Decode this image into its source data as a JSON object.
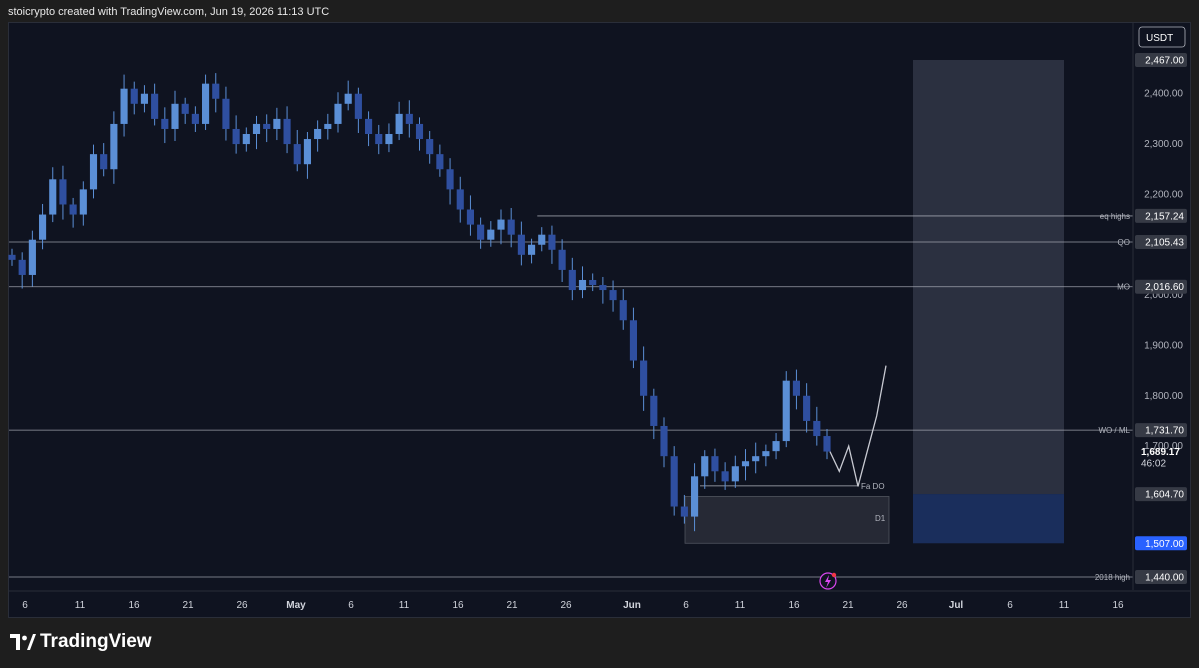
{
  "header": {
    "attribution": "stoicrypto created with TradingView.com, Jun 19, 2026 11:13 UTC"
  },
  "footer": {
    "brand": "TradingView"
  },
  "chart_data": {
    "type": "candlestick",
    "currency": "USDT",
    "ylim": [
      1420,
      2520
    ],
    "x_ticks": [
      "6",
      "11",
      "16",
      "21",
      "26",
      "May",
      "6",
      "11",
      "16",
      "21",
      "26",
      "Jun",
      "6",
      "11",
      "16",
      "21",
      "26",
      "Jul",
      "6",
      "11",
      "16"
    ],
    "y_ticks": [
      "2,400.00",
      "2,300.00",
      "2,200.00",
      "2,000.00",
      "1,900.00",
      "1,800.00",
      "1,700.00"
    ],
    "price_labels": [
      {
        "text": "2,467.00",
        "value": 2467,
        "style": "grey"
      },
      {
        "text": "2,157.24",
        "value": 2157.24,
        "style": "grey"
      },
      {
        "text": "2,105.43",
        "value": 2105.43,
        "style": "grey"
      },
      {
        "text": "2,016.60",
        "value": 2016.6,
        "style": "grey"
      },
      {
        "text": "1,731.70",
        "value": 1731.7,
        "style": "grey"
      },
      {
        "text": "1,604.70",
        "value": 1604.7,
        "style": "grey"
      },
      {
        "text": "1,507.00",
        "value": 1507,
        "style": "blue"
      },
      {
        "text": "1,440.00",
        "value": 1440,
        "style": "grey"
      }
    ],
    "current_price": {
      "text": "1,689.17",
      "countdown": "46:02",
      "value": 1689.17
    },
    "levels": [
      {
        "label": "eq highs",
        "value": 2157.24,
        "from": 0.47
      },
      {
        "label": "QO",
        "value": 2105.43,
        "from": 0
      },
      {
        "label": "MO",
        "value": 2016.6,
        "from": 0
      },
      {
        "label": "WO / ML",
        "value": 1731.7,
        "from": 0
      },
      {
        "label": "2018 high",
        "value": 1440,
        "from": 0
      }
    ],
    "annotations": [
      {
        "label": "Fa DO",
        "value": 1621
      },
      {
        "label": "D1",
        "value": 1557
      }
    ],
    "zones": [
      {
        "name": "D1",
        "top": 1600,
        "bottom": 1507
      },
      {
        "name": "target",
        "top": 2467,
        "bottom": 1604.7
      },
      {
        "name": "stop",
        "top": 1604.7,
        "bottom": 1507
      }
    ],
    "series": [
      {
        "name": "candles",
        "values": [
          2070,
          2040,
          2110,
          2160,
          2230,
          2180,
          2160,
          2210,
          2280,
          2250,
          2340,
          2410,
          2380,
          2400,
          2350,
          2330,
          2380,
          2360,
          2340,
          2420,
          2390,
          2330,
          2300,
          2320,
          2340,
          2330,
          2350,
          2300,
          2260,
          2310,
          2330,
          2340,
          2380,
          2400,
          2350,
          2320,
          2300,
          2320,
          2360,
          2340,
          2310,
          2280,
          2250,
          2210,
          2170,
          2140,
          2110,
          2130,
          2150,
          2120,
          2080,
          2100,
          2120,
          2090,
          2050,
          2010,
          2030,
          2020,
          2010,
          1990,
          1950,
          1870,
          1800,
          1740,
          1680,
          1580,
          1560,
          1640,
          1680,
          1650,
          1630,
          1660,
          1670,
          1680,
          1690,
          1710,
          1830,
          1800,
          1750,
          1720,
          1689.17
        ]
      },
      {
        "name": "projection",
        "values": [
          1689.17,
          1650,
          1700,
          1620,
          1690,
          1760,
          1860
        ]
      }
    ]
  }
}
